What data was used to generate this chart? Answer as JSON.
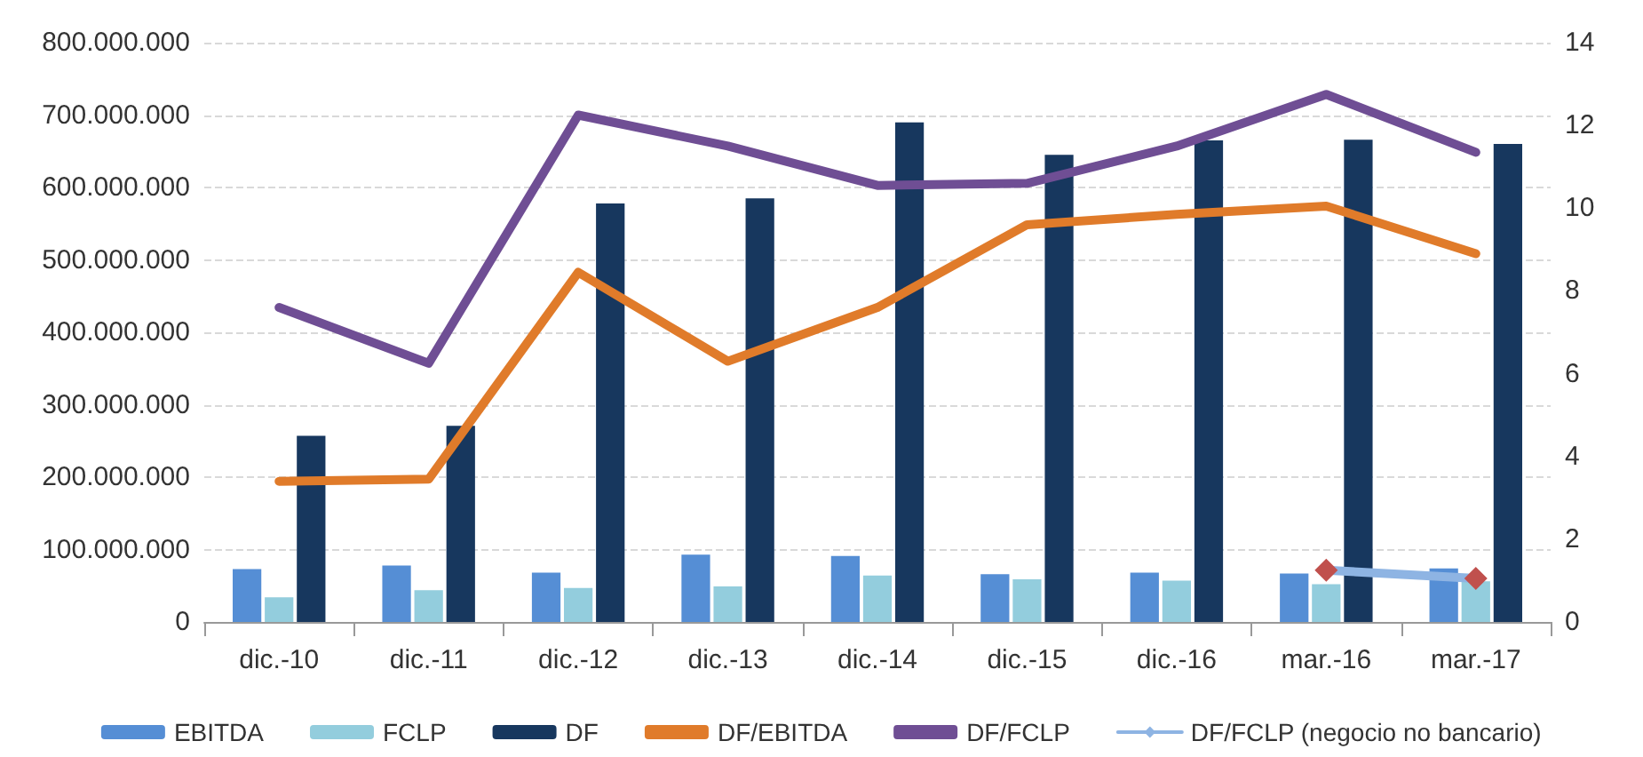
{
  "chart_data": {
    "type": "bar",
    "categories": [
      "dic.-10",
      "dic.-11",
      "dic.-12",
      "dic.-13",
      "dic.-14",
      "dic.-15",
      "dic.-16",
      "mar.-16",
      "mar.-17"
    ],
    "series": [
      {
        "name": "EBITDA",
        "color": "#558ed5",
        "values": [
          73000000,
          78000000,
          68000000,
          93000000,
          91000000,
          66000000,
          68000000,
          67000000,
          74000000
        ]
      },
      {
        "name": "FCLP",
        "color": "#93cddd",
        "values": [
          34000000,
          44000000,
          47000000,
          49000000,
          64000000,
          59000000,
          57000000,
          52000000,
          56000000
        ]
      },
      {
        "name": "DF",
        "color": "#17375e",
        "values": [
          257000000,
          271000000,
          578000000,
          585000000,
          690000000,
          645000000,
          665000000,
          666000000,
          660000000
        ]
      },
      {
        "name": "DF/EBITDA",
        "type": "line",
        "axis": "y2",
        "color": "#e07b2a",
        "marker": "none",
        "values": [
          3.4,
          3.45,
          8.45,
          6.3,
          7.6,
          9.6,
          9.85,
          10.05,
          8.9
        ]
      },
      {
        "name": "DF/FCLP",
        "type": "line",
        "axis": "y2",
        "color": "#6f4e94",
        "marker": "none",
        "values": [
          7.6,
          6.25,
          12.25,
          11.5,
          10.55,
          10.6,
          11.5,
          12.75,
          11.35
        ]
      },
      {
        "name": "DF/FCLP (negocio no bancario)",
        "type": "line",
        "axis": "y2",
        "color": "#8eb4e3",
        "marker": "diamond",
        "colors": [
          null,
          null,
          null,
          null,
          null,
          null,
          null,
          "#c0504d",
          "#c0504d"
        ],
        "values": [
          null,
          null,
          null,
          null,
          null,
          null,
          null,
          1.25,
          1.05
        ]
      }
    ],
    "ylim": [
      0,
      800000000
    ],
    "yticks": [
      {
        "value": 0,
        "label": "0"
      },
      {
        "value": 100000000,
        "label": "100.000.000"
      },
      {
        "value": 200000000,
        "label": "200.000.000"
      },
      {
        "value": 300000000,
        "label": "300.000.000"
      },
      {
        "value": 400000000,
        "label": "400.000.000"
      },
      {
        "value": 500000000,
        "label": "500.000.000"
      },
      {
        "value": 600000000,
        "label": "600.000.000"
      },
      {
        "value": 700000000,
        "label": "700.000.000"
      },
      {
        "value": 800000000,
        "label": "800.000.000"
      }
    ],
    "y2lim": [
      0,
      14
    ],
    "y2ticks": [
      0,
      2,
      4,
      6,
      8,
      10,
      12,
      14
    ],
    "grid": "y",
    "legend": "bottom"
  }
}
